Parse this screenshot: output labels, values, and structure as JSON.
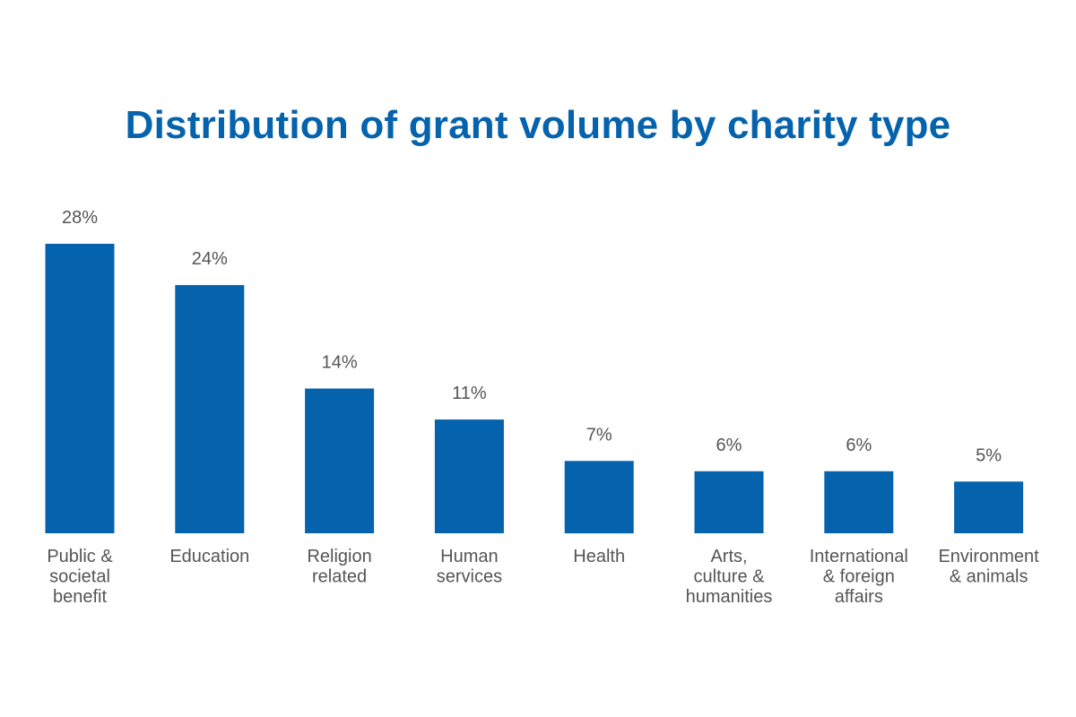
{
  "chart_data": {
    "type": "bar",
    "title": "Distribution of grant volume by charity type",
    "categories": [
      [
        "Public &",
        "societal",
        "benefit"
      ],
      [
        "Education"
      ],
      [
        "Religion",
        "related"
      ],
      [
        "Human",
        "services"
      ],
      [
        "Health"
      ],
      [
        "Arts,",
        "culture &",
        "humanities"
      ],
      [
        "International",
        "& foreign",
        "affairs"
      ],
      [
        "Environment",
        "& animals"
      ]
    ],
    "values": [
      28,
      24,
      14,
      11,
      7,
      6,
      6,
      5
    ],
    "value_labels": [
      "28%",
      "24%",
      "14%",
      "11%",
      "7%",
      "6%",
      "6%",
      "5%"
    ],
    "unit": "%",
    "ylim": [
      0,
      28
    ],
    "grid": false,
    "bar_color": "#0563AD",
    "title_color": "#0563AD",
    "label_color": "#555555"
  }
}
